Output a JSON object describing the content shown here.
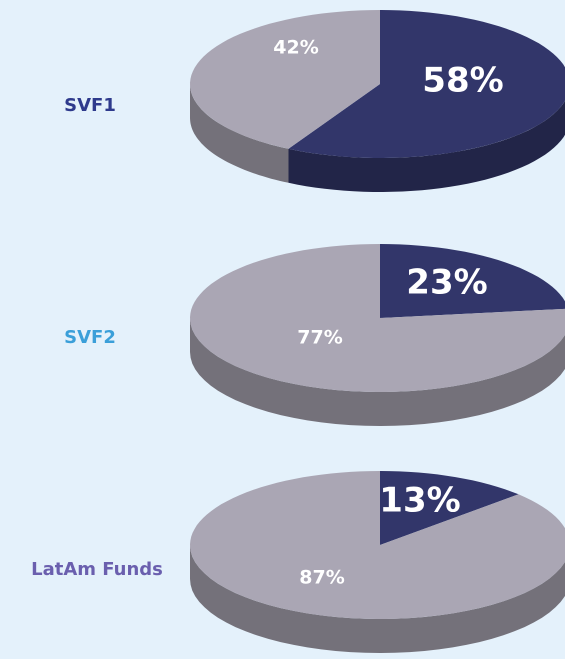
{
  "chart_data": [
    {
      "type": "pie",
      "title": "SVF1",
      "title_color": "#2e3a8c",
      "values": [
        58,
        42
      ],
      "value_labels": [
        "58%",
        "42%"
      ],
      "colors": [
        "#32366a",
        "#aaa6b4"
      ]
    },
    {
      "type": "pie",
      "title": "SVF2",
      "title_color": "#3a9fd9",
      "values": [
        23,
        77
      ],
      "value_labels": [
        "23%",
        "77%"
      ],
      "colors": [
        "#32366a",
        "#aaa6b4"
      ]
    },
    {
      "type": "pie",
      "title": "LatAm Funds",
      "title_color": "#6a5fae",
      "values": [
        13,
        87
      ],
      "value_labels": [
        "13%",
        "87%"
      ],
      "colors": [
        "#32366a",
        "#aaa6b4"
      ]
    }
  ]
}
